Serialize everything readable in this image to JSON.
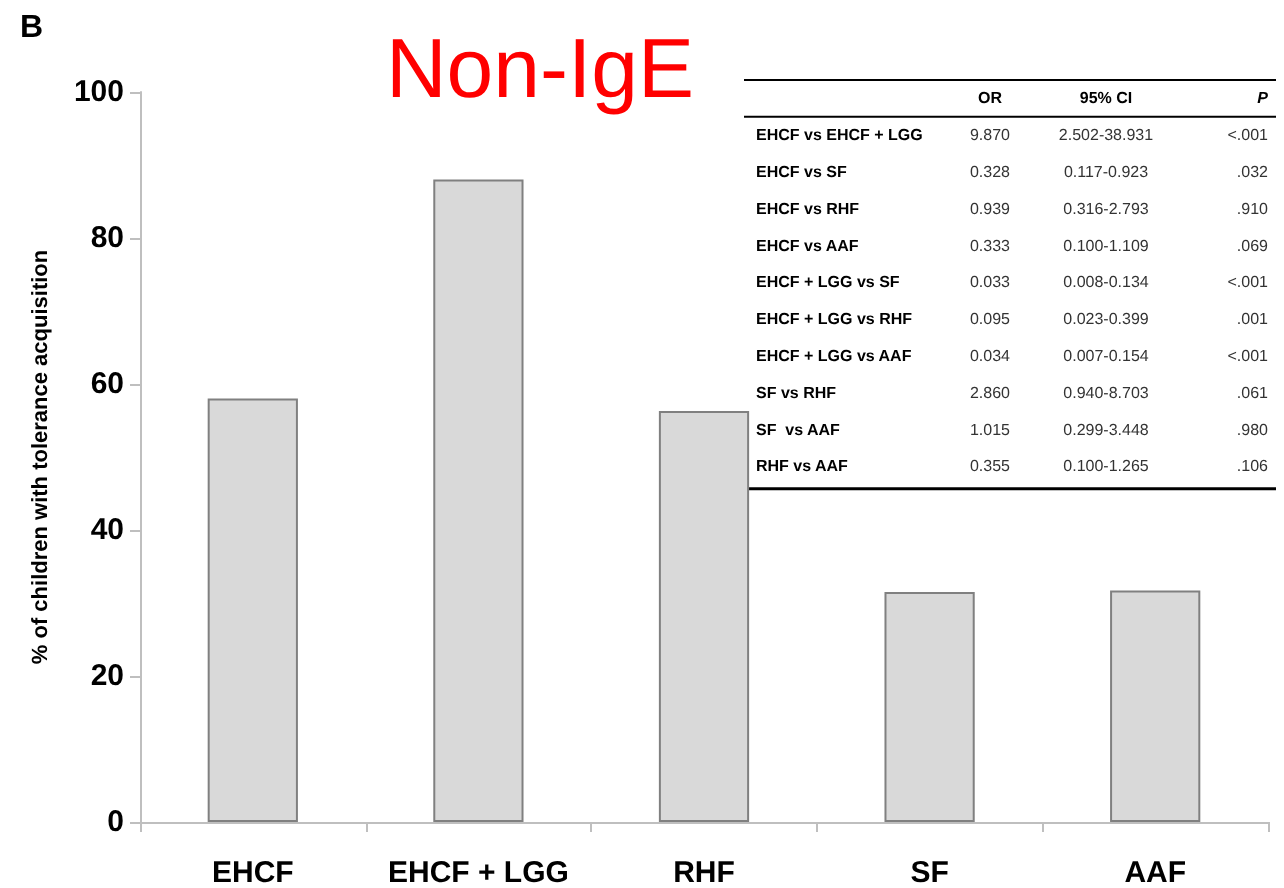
{
  "chart_data": {
    "type": "bar",
    "title": "Non-IgE",
    "ylabel": "% of children with tolerance acquisition",
    "categories": [
      "EHCF",
      "EHCF + LGG",
      "RHF",
      "SF",
      "AAF"
    ],
    "values": [
      58,
      88,
      56.3,
      31.5,
      31.7
    ],
    "color": "#d9d9d9",
    "ylim": [
      0,
      100
    ],
    "yticks": [
      0,
      20,
      40,
      60,
      80,
      100
    ],
    "grid": false,
    "annotations": [
      "B",
      "OR",
      "95% CI",
      "P",
      "EHCF vs EHCF + LGG",
      "9.870",
      "2.502-38.931",
      "<.001",
      "EHCF vs SF",
      "0.328",
      "0.117-0.923",
      ".032",
      "EHCF vs RHF",
      "0.939",
      "0.316-2.793",
      ".910",
      "EHCF vs AAF",
      "0.333",
      "0.100-1.109",
      ".069",
      "EHCF + LGG vs SF",
      "0.033",
      "0.008-0.134",
      "<.001",
      "EHCF + LGG vs RHF",
      "0.095",
      "0.023-0.399",
      ".001",
      "EHCF + LGG vs AAF",
      "0.034",
      "0.007-0.154",
      "<.001",
      "SF vs RHF",
      "2.860",
      "0.940-8.703",
      ".061",
      "SF  vs AAF",
      "1.015",
      "0.299-3.448",
      ".980",
      "RHF vs AAF",
      "0.355",
      "0.100-1.265",
      ".106"
    ]
  }
}
